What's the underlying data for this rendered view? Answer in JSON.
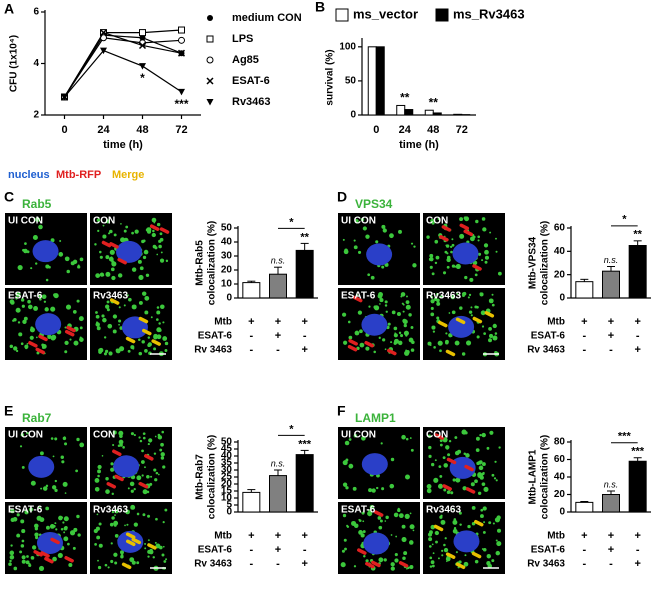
{
  "legend_text": {
    "nucleus": "nucleus",
    "mtb": "Mtb-RFP",
    "merge": "Merge"
  },
  "chart_data": [
    {
      "panel": "A",
      "type": "line",
      "ylabel": "CFU (1x10⁴)",
      "xlabel": "time (h)",
      "x": [
        0,
        24,
        48,
        72
      ],
      "xlim": [
        -12,
        84
      ],
      "xticks": [
        0,
        24,
        48,
        72
      ],
      "ylim": [
        2,
        6
      ],
      "yticks": [
        2,
        4,
        6
      ],
      "series": [
        {
          "name": "medium CON",
          "color": "#000000",
          "marker": "filled-circle",
          "values": [
            2.7,
            5.1,
            5.0,
            4.4
          ]
        },
        {
          "name": "LPS",
          "color": "#000000",
          "marker": "open-square",
          "values": [
            2.7,
            5.2,
            5.2,
            5.3
          ]
        },
        {
          "name": "Ag85",
          "color": "#000000",
          "marker": "open-circle",
          "values": [
            2.7,
            5.0,
            4.8,
            4.9
          ]
        },
        {
          "name": "ESAT-6",
          "color": "#000000",
          "marker": "x",
          "values": [
            2.7,
            5.2,
            4.7,
            4.4
          ]
        },
        {
          "name": "Rv3463",
          "color": "#000000",
          "marker": "filled-triangle-down",
          "values": [
            2.7,
            4.5,
            3.9,
            2.9
          ],
          "point_labels": [
            null,
            null,
            "*",
            "***"
          ]
        }
      ]
    },
    {
      "panel": "B",
      "type": "bar",
      "ylabel": "survival (%)",
      "xlabel": "time (h)",
      "categories": [
        "0",
        "24",
        "48",
        "72"
      ],
      "ylim": [
        0,
        110
      ],
      "yticks": [
        0,
        50,
        100
      ],
      "series": [
        {
          "name": "ms_vector",
          "color": "#ffffff",
          "values": [
            100,
            14,
            7,
            1
          ]
        },
        {
          "name": "ms_Rv3463",
          "color": "#000000",
          "values": [
            100,
            8,
            3,
            0.5
          ]
        }
      ],
      "group_labels": [
        null,
        "**",
        "**",
        null
      ]
    },
    {
      "panel": "C",
      "type": "bar",
      "title": "Rab5",
      "micrograph_labels": [
        "UI CON",
        "CON",
        "ESAT-6",
        "Rv3463"
      ],
      "ylabel": [
        "Mtb-Rab5",
        "colocalization (%)"
      ],
      "ylim": [
        0,
        50
      ],
      "yticks": [
        0,
        10,
        20,
        30,
        40,
        50
      ],
      "values": [
        11,
        17,
        34
      ],
      "errors": [
        1,
        5,
        5
      ],
      "colors": [
        "#ffffff",
        "#808080",
        "#000000"
      ],
      "bar_labels": [
        null,
        "n.s.",
        "**"
      ],
      "bracket_label": "*",
      "rows": [
        {
          "label": "Mtb",
          "cells": [
            "+",
            "+",
            "+"
          ]
        },
        {
          "label": "ESAT-6",
          "cells": [
            "-",
            "+",
            "-"
          ]
        },
        {
          "label": "Rv 3463",
          "cells": [
            "-",
            "-",
            "+"
          ]
        }
      ]
    },
    {
      "panel": "D",
      "type": "bar",
      "title": "VPS34",
      "micrograph_labels": [
        "UI CON",
        "CON",
        "ESAT-6",
        "Rv3463"
      ],
      "ylabel": [
        "Mtb-VPS34",
        "colocalization (%)"
      ],
      "ylim": [
        0,
        60
      ],
      "yticks": [
        0,
        20,
        40,
        60
      ],
      "values": [
        14,
        23,
        45
      ],
      "errors": [
        2,
        4,
        4
      ],
      "colors": [
        "#ffffff",
        "#808080",
        "#000000"
      ],
      "bar_labels": [
        null,
        "n.s.",
        "**"
      ],
      "bracket_label": "*",
      "rows": [
        {
          "label": "Mtb",
          "cells": [
            "+",
            "+",
            "+"
          ]
        },
        {
          "label": "ESAT-6",
          "cells": [
            "-",
            "+",
            "-"
          ]
        },
        {
          "label": "Rv 3463",
          "cells": [
            "-",
            "-",
            "+"
          ]
        }
      ]
    },
    {
      "panel": "E",
      "type": "bar",
      "title": "Rab7",
      "micrograph_labels": [
        "UI CON",
        "CON",
        "ESAT-6",
        "Rv3463"
      ],
      "ylabel": [
        "Mtb-Rab7",
        "colocalization (%)"
      ],
      "ylim": [
        0,
        50
      ],
      "yticks": [
        0,
        5,
        10,
        15,
        20,
        25,
        30,
        35,
        40,
        45,
        50
      ],
      "values": [
        14,
        26,
        41
      ],
      "errors": [
        2,
        4,
        3
      ],
      "colors": [
        "#ffffff",
        "#808080",
        "#000000"
      ],
      "bar_labels": [
        null,
        "n.s.",
        "***"
      ],
      "bracket_label": "*",
      "rows": [
        {
          "label": "Mtb",
          "cells": [
            "+",
            "+",
            "+"
          ]
        },
        {
          "label": "ESAT-6",
          "cells": [
            "-",
            "+",
            "-"
          ]
        },
        {
          "label": "Rv 3463",
          "cells": [
            "-",
            "-",
            "+"
          ]
        }
      ]
    },
    {
      "panel": "F",
      "type": "bar",
      "title": "LAMP1",
      "micrograph_labels": [
        "UI CON",
        "CON",
        "ESAT-6",
        "Rv3463"
      ],
      "ylabel": [
        "Mtb-LAMP1",
        "colocalization (%)"
      ],
      "ylim": [
        0,
        80
      ],
      "yticks": [
        0,
        20,
        40,
        60,
        80
      ],
      "values": [
        11,
        20,
        58
      ],
      "errors": [
        1,
        4,
        4
      ],
      "colors": [
        "#ffffff",
        "#808080",
        "#000000"
      ],
      "bar_labels": [
        null,
        "n.s.",
        "***"
      ],
      "bracket_label": "***",
      "rows": [
        {
          "label": "Mtb",
          "cells": [
            "+",
            "+",
            "+"
          ]
        },
        {
          "label": "ESAT-6",
          "cells": [
            "-",
            "+",
            "-"
          ]
        },
        {
          "label": "Rv 3463",
          "cells": [
            "-",
            "-",
            "+"
          ]
        }
      ]
    }
  ]
}
